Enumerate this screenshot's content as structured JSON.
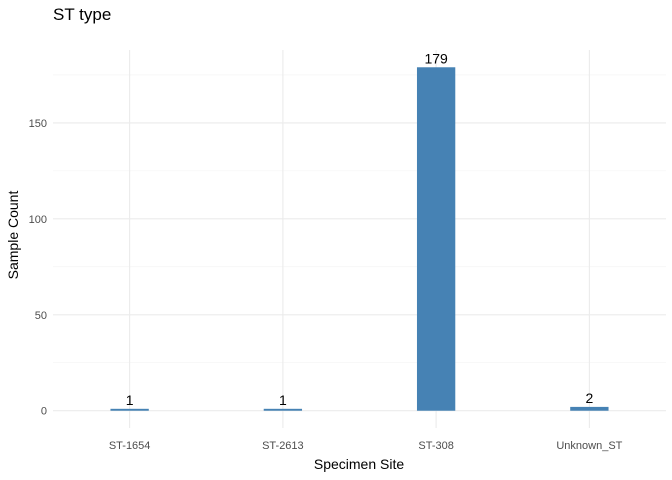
{
  "chart_data": {
    "type": "bar",
    "title": "ST type",
    "xlabel": "Specimen Site",
    "ylabel": "Sample Count",
    "categories": [
      "ST-1654",
      "ST-2613",
      "ST-308",
      "Unknown_ST"
    ],
    "values": [
      1,
      1,
      179,
      2
    ],
    "data_labels": [
      "1",
      "1",
      "179",
      "2"
    ],
    "yticks": [
      0,
      50,
      100,
      150
    ],
    "ylim": [
      -9,
      188
    ],
    "grid": true,
    "legend": "none",
    "bar_color": "#4682b4"
  }
}
